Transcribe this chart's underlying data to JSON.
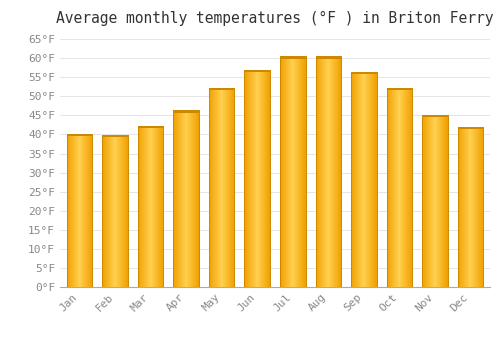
{
  "title": "Average monthly temperatures (°F ) in Briton Ferry",
  "months": [
    "Jan",
    "Feb",
    "Mar",
    "Apr",
    "May",
    "Jun",
    "Jul",
    "Aug",
    "Sep",
    "Oct",
    "Nov",
    "Dec"
  ],
  "values": [
    40.1,
    39.9,
    42.3,
    46.3,
    52.2,
    57.0,
    60.5,
    60.5,
    56.5,
    52.2,
    45.1,
    42.0
  ],
  "bar_color_center": "#FFD050",
  "bar_color_edge": "#F0A000",
  "bar_color_top": "#E09000",
  "background_color": "#FFFFFF",
  "grid_color": "#E0E0E0",
  "ylim": [
    0,
    67
  ],
  "ytick_values": [
    0,
    5,
    10,
    15,
    20,
    25,
    30,
    35,
    40,
    45,
    50,
    55,
    60,
    65
  ],
  "title_fontsize": 10.5,
  "tick_fontsize": 8,
  "tick_color": "#888888",
  "font_family": "monospace"
}
